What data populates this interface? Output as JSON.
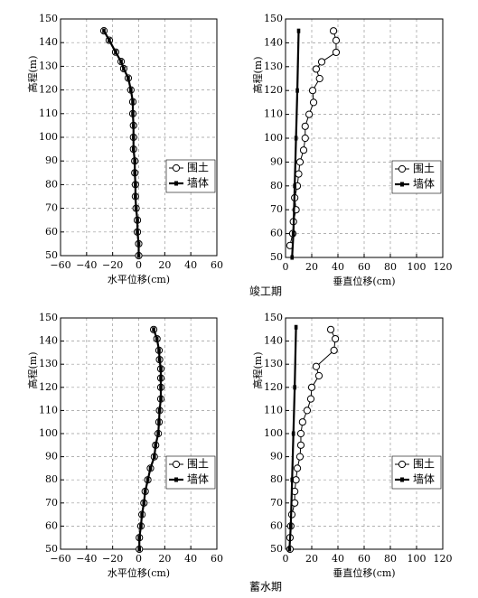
{
  "chart_data": [
    {
      "type": "line",
      "xlabel": "水平位移(cm)",
      "ylabel": "高程(m)",
      "xlim": [
        -60,
        60
      ],
      "xticks": [
        {
          "value": -60,
          "label": "−60"
        },
        {
          "value": -40,
          "label": "−40"
        },
        {
          "value": -20,
          "label": "−20"
        },
        0,
        20,
        40,
        60
      ],
      "ylim": [
        50,
        150
      ],
      "yticks": [
        50,
        60,
        70,
        80,
        90,
        100,
        110,
        120,
        130,
        140,
        150
      ],
      "grid": true,
      "legend": "center right",
      "series": [
        {
          "name": "围土",
          "color": "#000000",
          "marker": "circle",
          "x": [
            -26.7,
            -22.6,
            -17.7,
            -13.5,
            -11.5,
            -8,
            -6,
            -4.5,
            -4.5,
            -4,
            -4,
            -4,
            -3,
            -3,
            -2.5,
            -2.5,
            -2,
            -1,
            -1,
            0,
            0
          ],
          "values": [
            145,
            141,
            136,
            132,
            129,
            125,
            120,
            115,
            110,
            105,
            100,
            95,
            90,
            85,
            80,
            75,
            70,
            65,
            60,
            55,
            50
          ]
        },
        {
          "name": "墙体",
          "color": "#000000",
          "marker": "square",
          "x": [
            -26.7,
            -22.6,
            -17.7,
            -13.5,
            -11.5,
            -8,
            -6,
            -4.5,
            -4.5,
            -4,
            -4,
            -4,
            -3,
            -3,
            -2.5,
            -2.5,
            -2,
            -1,
            -1,
            0,
            0
          ],
          "values": [
            145,
            141,
            136,
            132,
            129,
            125,
            120,
            115,
            110,
            105,
            100,
            95,
            90,
            85,
            80,
            75,
            70,
            65,
            60,
            55,
            50
          ]
        }
      ]
    },
    {
      "type": "line",
      "xlabel": "垂直位移(cm)",
      "ylabel": "高程(m)",
      "xlim": [
        0,
        120
      ],
      "xticks": [
        0,
        20,
        40,
        60,
        80,
        100,
        120
      ],
      "ylim": [
        50,
        150
      ],
      "yticks": [
        50,
        60,
        70,
        80,
        90,
        100,
        110,
        120,
        130,
        140,
        150
      ],
      "grid": true,
      "legend": "center right",
      "series": [
        {
          "name": "围土",
          "color": "#000000",
          "marker": "circle",
          "x": [
            36.6,
            38.6,
            38.6,
            27.6,
            23.4,
            26,
            20.7,
            21.4,
            18,
            15,
            15,
            13.8,
            11,
            10,
            9,
            7,
            8,
            6,
            5.5,
            3.4
          ],
          "values": [
            145,
            141,
            136,
            132,
            129,
            125,
            120,
            115,
            110,
            105,
            100,
            95,
            90,
            85,
            80,
            75,
            70,
            65,
            60,
            55
          ]
        },
        {
          "name": "墙体",
          "color": "#000000",
          "marker": "square",
          "x": [
            10,
            9,
            8,
            7,
            6,
            5
          ],
          "values": [
            145,
            120,
            100,
            80,
            60,
            50
          ]
        }
      ]
    },
    {
      "type": "line",
      "xlabel": "水平位移(cm)",
      "ylabel": "高程(m)",
      "xlim": [
        -60,
        60
      ],
      "xticks": [
        {
          "value": -60,
          "label": "−60"
        },
        {
          "value": -40,
          "label": "−40"
        },
        {
          "value": -20,
          "label": "−20"
        },
        0,
        20,
        40,
        60
      ],
      "ylim": [
        50,
        150
      ],
      "yticks": [
        50,
        60,
        70,
        80,
        90,
        100,
        110,
        120,
        130,
        140,
        150
      ],
      "grid": true,
      "legend": "center right",
      "series": [
        {
          "name": "围土",
          "color": "#000000",
          "marker": "circle",
          "x": [
            11.5,
            14,
            15.6,
            16,
            17,
            17,
            17,
            17,
            16,
            15.6,
            15,
            13,
            12,
            9,
            7,
            5,
            4,
            2.5,
            1.7,
            0.5,
            0.5
          ],
          "values": [
            145,
            141,
            136,
            132,
            128,
            124,
            120,
            115,
            110,
            105,
            100,
            95,
            90,
            85,
            80,
            75,
            70,
            65,
            60,
            55,
            50
          ]
        },
        {
          "name": "墙体",
          "color": "#000000",
          "marker": "square",
          "x": [
            11.5,
            14,
            15.6,
            16,
            17,
            17,
            17,
            17,
            16,
            15.6,
            15,
            13,
            12,
            9,
            7,
            5,
            4,
            2.5,
            1.7,
            0.5,
            0.5
          ],
          "values": [
            145,
            141,
            136,
            132,
            128,
            124,
            120,
            115,
            110,
            105,
            100,
            95,
            90,
            85,
            80,
            75,
            70,
            65,
            60,
            55,
            50
          ]
        }
      ]
    },
    {
      "type": "line",
      "xlabel": "垂直位移(cm)",
      "ylabel": "高程(m)",
      "xlim": [
        0,
        120
      ],
      "xticks": [
        0,
        20,
        40,
        60,
        80,
        100,
        120
      ],
      "ylim": [
        50,
        150
      ],
      "yticks": [
        50,
        60,
        70,
        80,
        90,
        100,
        110,
        120,
        130,
        140,
        150
      ],
      "grid": true,
      "legend": "center right",
      "series": [
        {
          "name": "围土",
          "color": "#000000",
          "marker": "circle",
          "x": [
            34.5,
            38,
            37,
            23.4,
            25.5,
            20,
            19.3,
            16.5,
            13,
            11.7,
            11.7,
            11,
            9,
            8,
            7,
            7,
            4.8,
            4,
            3.4,
            3.4
          ],
          "values": [
            145,
            141,
            136,
            129,
            125,
            120,
            115,
            110,
            105,
            100,
            95,
            90,
            85,
            80,
            75,
            70,
            65,
            60,
            55,
            50
          ]
        },
        {
          "name": "墙体",
          "color": "#000000",
          "marker": "square",
          "x": [
            8,
            7,
            6,
            5,
            4,
            3
          ],
          "values": [
            146,
            120,
            100,
            80,
            60,
            50
          ]
        }
      ]
    }
  ],
  "captions": [
    "竣工期",
    "蓄水期"
  ]
}
